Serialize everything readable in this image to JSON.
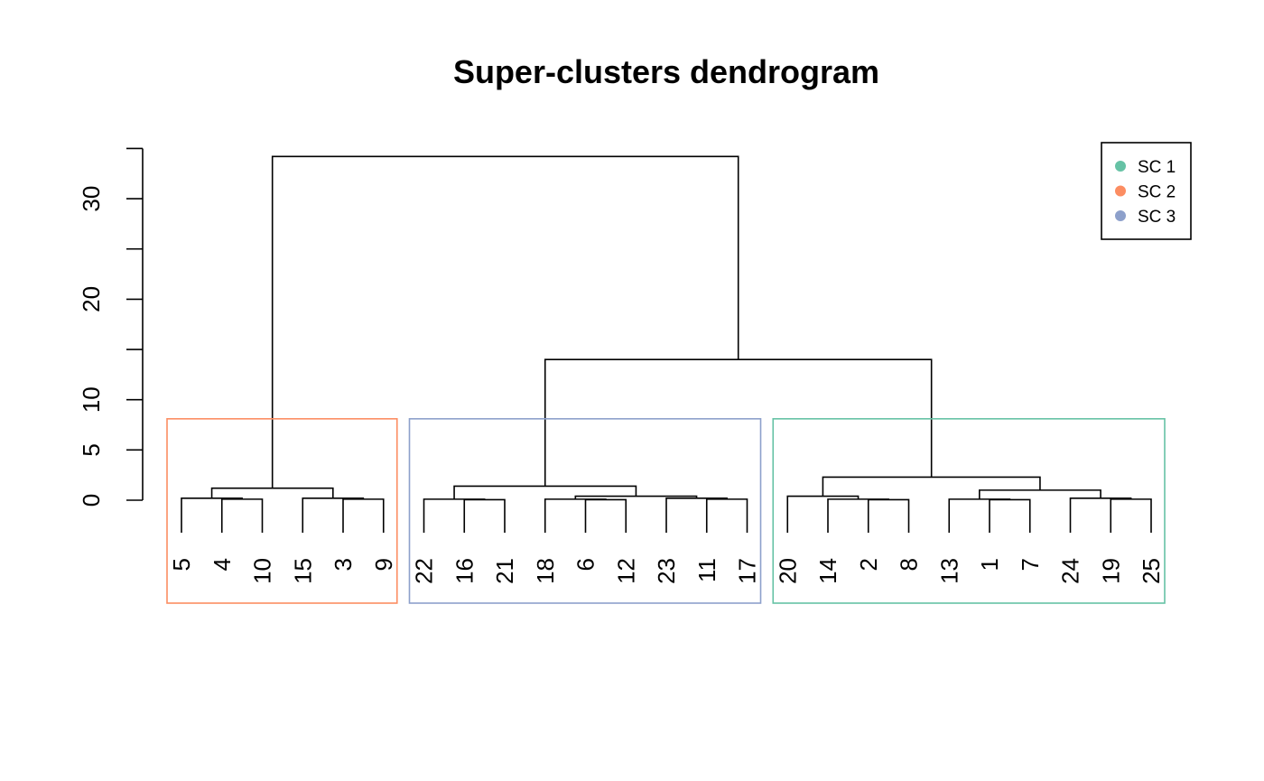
{
  "chart_data": {
    "type": "dendrogram",
    "title": "Super-clusters dendrogram",
    "xlabel": "",
    "ylabel": "",
    "ylim": [
      0,
      35
    ],
    "y_ticks": [
      0,
      5,
      10,
      20,
      30
    ],
    "y_tick_labels": [
      "0",
      "5",
      "10",
      "20",
      "30"
    ],
    "grid": false,
    "leaves": [
      "5",
      "4",
      "10",
      "15",
      "3",
      "9",
      "22",
      "16",
      "21",
      "18",
      "6",
      "12",
      "23",
      "11",
      "17",
      "20",
      "14",
      "2",
      "8",
      "13",
      "1",
      "7",
      "24",
      "19",
      "25"
    ],
    "merges": [
      {
        "left": "4",
        "right": "10",
        "height": 0.1
      },
      {
        "left": "5",
        "right": [
          "4",
          "10"
        ],
        "height": 0.2
      },
      {
        "left": "3",
        "right": "9",
        "height": 0.1
      },
      {
        "left": "15",
        "right": [
          "3",
          "9"
        ],
        "height": 0.2
      },
      {
        "left": [
          "5",
          "4",
          "10"
        ],
        "right": [
          "15",
          "3",
          "9"
        ],
        "height": 1.2
      },
      {
        "left": "16",
        "right": "21",
        "height": 0.05
      },
      {
        "left": "22",
        "right": [
          "16",
          "21"
        ],
        "height": 0.1
      },
      {
        "left": "6",
        "right": "12",
        "height": 0.05
      },
      {
        "left": "18",
        "right": [
          "6",
          "12"
        ],
        "height": 0.1
      },
      {
        "left": "11",
        "right": "17",
        "height": 0.1
      },
      {
        "left": "23",
        "right": [
          "11",
          "17"
        ],
        "height": 0.2
      },
      {
        "left": [
          "18",
          "6",
          "12"
        ],
        "right": [
          "23",
          "11",
          "17"
        ],
        "height": 0.4
      },
      {
        "left": [
          "22",
          "16",
          "21"
        ],
        "right": [
          "18",
          "6",
          "12",
          "23",
          "11",
          "17"
        ],
        "height": 1.4
      },
      {
        "left": "2",
        "right": "8",
        "height": 0.05
      },
      {
        "left": "14",
        "right": [
          "2",
          "8"
        ],
        "height": 0.1
      },
      {
        "left": "20",
        "right": [
          "14",
          "2",
          "8"
        ],
        "height": 0.4
      },
      {
        "left": "1",
        "right": "7",
        "height": 0.05
      },
      {
        "left": "13",
        "right": [
          "1",
          "7"
        ],
        "height": 0.1
      },
      {
        "left": "19",
        "right": "25",
        "height": 0.1
      },
      {
        "left": "24",
        "right": [
          "19",
          "25"
        ],
        "height": 0.2
      },
      {
        "left": [
          "13",
          "1",
          "7"
        ],
        "right": [
          "24",
          "19",
          "25"
        ],
        "height": 1.0
      },
      {
        "left": [
          "20",
          "14",
          "2",
          "8"
        ],
        "right": [
          "13",
          "1",
          "7",
          "24",
          "19",
          "25"
        ],
        "height": 2.3
      },
      {
        "left": [
          "22",
          "16",
          "21",
          "18",
          "6",
          "12",
          "23",
          "11",
          "17"
        ],
        "right": [
          "20",
          "14",
          "2",
          "8",
          "13",
          "1",
          "7",
          "24",
          "19",
          "25"
        ],
        "height": 14.0
      },
      {
        "left": [
          "5",
          "4",
          "10",
          "15",
          "3",
          "9"
        ],
        "right": [
          "22",
          "16",
          "21",
          "18",
          "6",
          "12",
          "23",
          "11",
          "17",
          "20",
          "14",
          "2",
          "8",
          "13",
          "1",
          "7",
          "24",
          "19",
          "25"
        ],
        "height": 34.2
      }
    ],
    "clusters": [
      {
        "name": "SC 2",
        "color": "#FC8D62",
        "leaves": [
          "5",
          "4",
          "10",
          "15",
          "3",
          "9"
        ]
      },
      {
        "name": "SC 3",
        "color": "#8DA0CB",
        "leaves": [
          "22",
          "16",
          "21",
          "18",
          "6",
          "12",
          "23",
          "11",
          "17"
        ]
      },
      {
        "name": "SC 1",
        "color": "#66C2A5",
        "leaves": [
          "20",
          "14",
          "2",
          "8",
          "13",
          "1",
          "7",
          "24",
          "19",
          "25"
        ]
      }
    ],
    "legend": {
      "placement": "top-right",
      "entries": [
        {
          "label": "SC 1",
          "color": "#66C2A5"
        },
        {
          "label": "SC 2",
          "color": "#FC8D62"
        },
        {
          "label": "SC 3",
          "color": "#8DA0CB"
        }
      ]
    }
  }
}
